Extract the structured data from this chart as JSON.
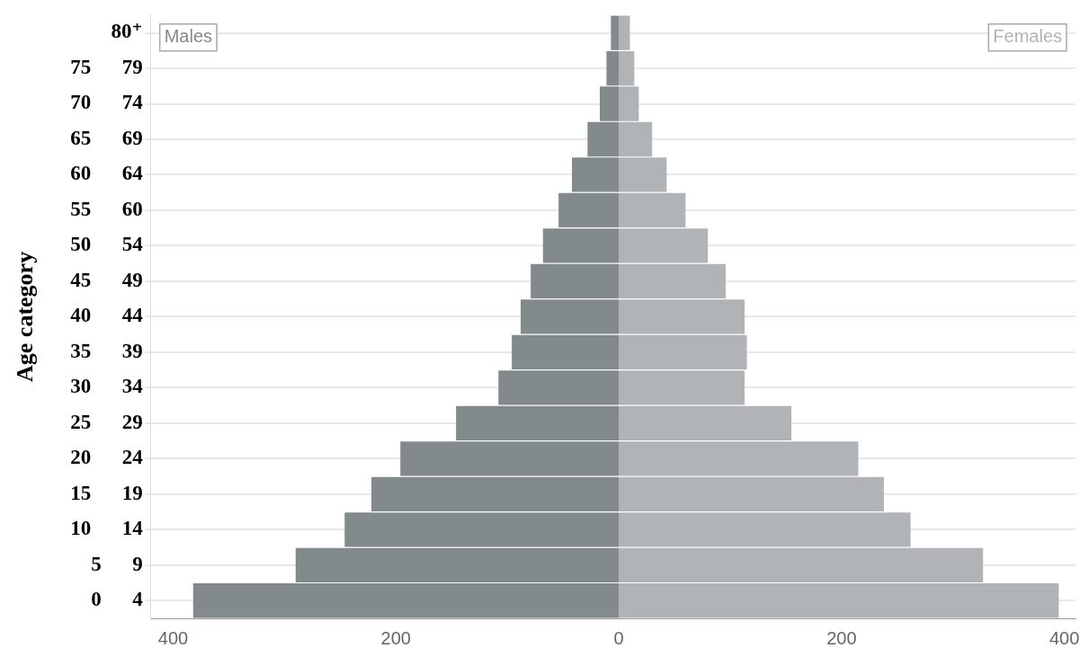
{
  "chart_data": {
    "type": "bar",
    "orientation": "horizontal",
    "stacked": true,
    "ylabel": "Age category",
    "categories": [
      "80⁺",
      "75 79",
      "70 74",
      "65 69",
      "60 64",
      "55 60",
      "50 54",
      "45 49",
      "40 44",
      "35 39",
      "30 34",
      "25 29",
      "20 24",
      "15 19",
      "10 14",
      "5 9",
      "0 4"
    ],
    "series": [
      {
        "name": "Males",
        "color": "#838a8c",
        "values": [
          -7,
          -11,
          -17,
          -28,
          -42,
          -54,
          -68,
          -79,
          -88,
          -96,
          -108,
          -146,
          -196,
          -222,
          -246,
          -290,
          -382
        ]
      },
      {
        "name": "Females",
        "color": "#b0b4b7",
        "values": [
          10,
          14,
          18,
          30,
          43,
          60,
          80,
          96,
          113,
          115,
          113,
          155,
          215,
          238,
          262,
          327,
          395
        ]
      }
    ],
    "xlim": [
      -420,
      410
    ],
    "xticks": [
      {
        "value": -400,
        "label": "400"
      },
      {
        "value": -200,
        "label": "200"
      },
      0,
      200,
      400
    ],
    "grid": "y"
  }
}
